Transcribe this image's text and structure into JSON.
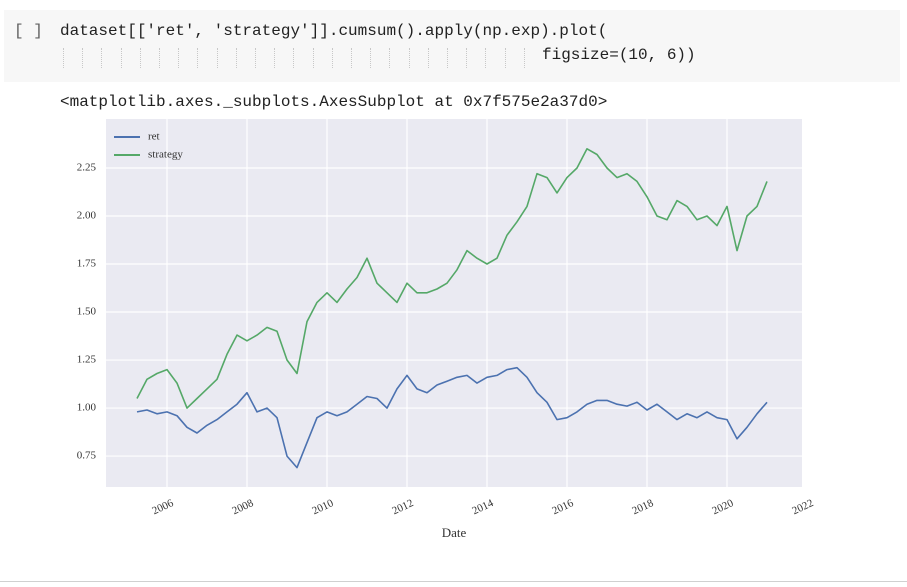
{
  "cell": {
    "prompt": "[ ]",
    "code": [
      "dataset[['ret', 'strategy']].cumsum().apply(np.exp).plot(",
      "figsize=(10, 6))"
    ]
  },
  "output": {
    "text": "<matplotlib.axes._subplots.AxesSubplot at 0x7f575e2a37d0>"
  },
  "chart_data": {
    "type": "line",
    "xlabel": "Date",
    "legend": "upper left",
    "grid": true,
    "x": [
      2005.25,
      2005.5,
      2005.75,
      2006,
      2006.25,
      2006.5,
      2006.75,
      2007,
      2007.25,
      2007.5,
      2007.75,
      2008,
      2008.25,
      2008.5,
      2008.75,
      2009,
      2009.25,
      2009.5,
      2009.75,
      2010,
      2010.25,
      2010.5,
      2010.75,
      2011,
      2011.25,
      2011.5,
      2011.75,
      2012,
      2012.25,
      2012.5,
      2012.75,
      2013,
      2013.25,
      2013.5,
      2013.75,
      2014,
      2014.25,
      2014.5,
      2014.75,
      2015,
      2015.25,
      2015.5,
      2015.75,
      2016,
      2016.25,
      2016.5,
      2016.75,
      2017,
      2017.25,
      2017.5,
      2017.75,
      2018,
      2018.25,
      2018.5,
      2018.75,
      2019,
      2019.25,
      2019.5,
      2019.75,
      2020,
      2020.25,
      2020.5,
      2020.75,
      2021
    ],
    "series": [
      {
        "name": "ret",
        "color": "#4c72b0",
        "values": [
          0.98,
          0.99,
          0.97,
          0.98,
          0.96,
          0.9,
          0.87,
          0.91,
          0.94,
          0.98,
          1.02,
          1.08,
          0.98,
          1.0,
          0.95,
          0.75,
          0.69,
          0.82,
          0.95,
          0.98,
          0.96,
          0.98,
          1.02,
          1.06,
          1.05,
          1.0,
          1.1,
          1.17,
          1.1,
          1.08,
          1.12,
          1.14,
          1.16,
          1.17,
          1.13,
          1.16,
          1.17,
          1.2,
          1.21,
          1.16,
          1.08,
          1.03,
          0.94,
          0.95,
          0.98,
          1.02,
          1.04,
          1.04,
          1.02,
          1.01,
          1.03,
          0.99,
          1.02,
          0.98,
          0.94,
          0.97,
          0.95,
          0.98,
          0.95,
          0.94,
          0.84,
          0.9,
          0.97,
          1.03
        ]
      },
      {
        "name": "strategy",
        "color": "#55a868",
        "values": [
          1.05,
          1.15,
          1.18,
          1.2,
          1.13,
          1.0,
          1.05,
          1.1,
          1.15,
          1.28,
          1.38,
          1.35,
          1.38,
          1.42,
          1.4,
          1.25,
          1.18,
          1.45,
          1.55,
          1.6,
          1.55,
          1.62,
          1.68,
          1.78,
          1.65,
          1.6,
          1.55,
          1.65,
          1.6,
          1.6,
          1.62,
          1.65,
          1.72,
          1.82,
          1.78,
          1.75,
          1.78,
          1.9,
          1.97,
          2.05,
          2.22,
          2.2,
          2.12,
          2.2,
          2.25,
          2.35,
          2.32,
          2.25,
          2.2,
          2.22,
          2.18,
          2.1,
          2.0,
          1.98,
          2.08,
          2.05,
          1.98,
          2.0,
          1.95,
          2.05,
          1.82,
          2.0,
          2.05,
          2.18
        ]
      }
    ],
    "xlim": [
      2004.475,
      2021.875
    ],
    "xticks": [
      2006,
      2008,
      2010,
      2012,
      2014,
      2016,
      2018,
      2020,
      2022
    ],
    "ylim": [
      0.589,
      2.505
    ],
    "yticks": [
      0.75,
      {
        "value": 1,
        "label": "1.00"
      },
      1.25,
      {
        "value": 1.5,
        "label": "1.50"
      },
      1.75,
      {
        "value": 2,
        "label": "2.00"
      },
      2.25
    ]
  }
}
